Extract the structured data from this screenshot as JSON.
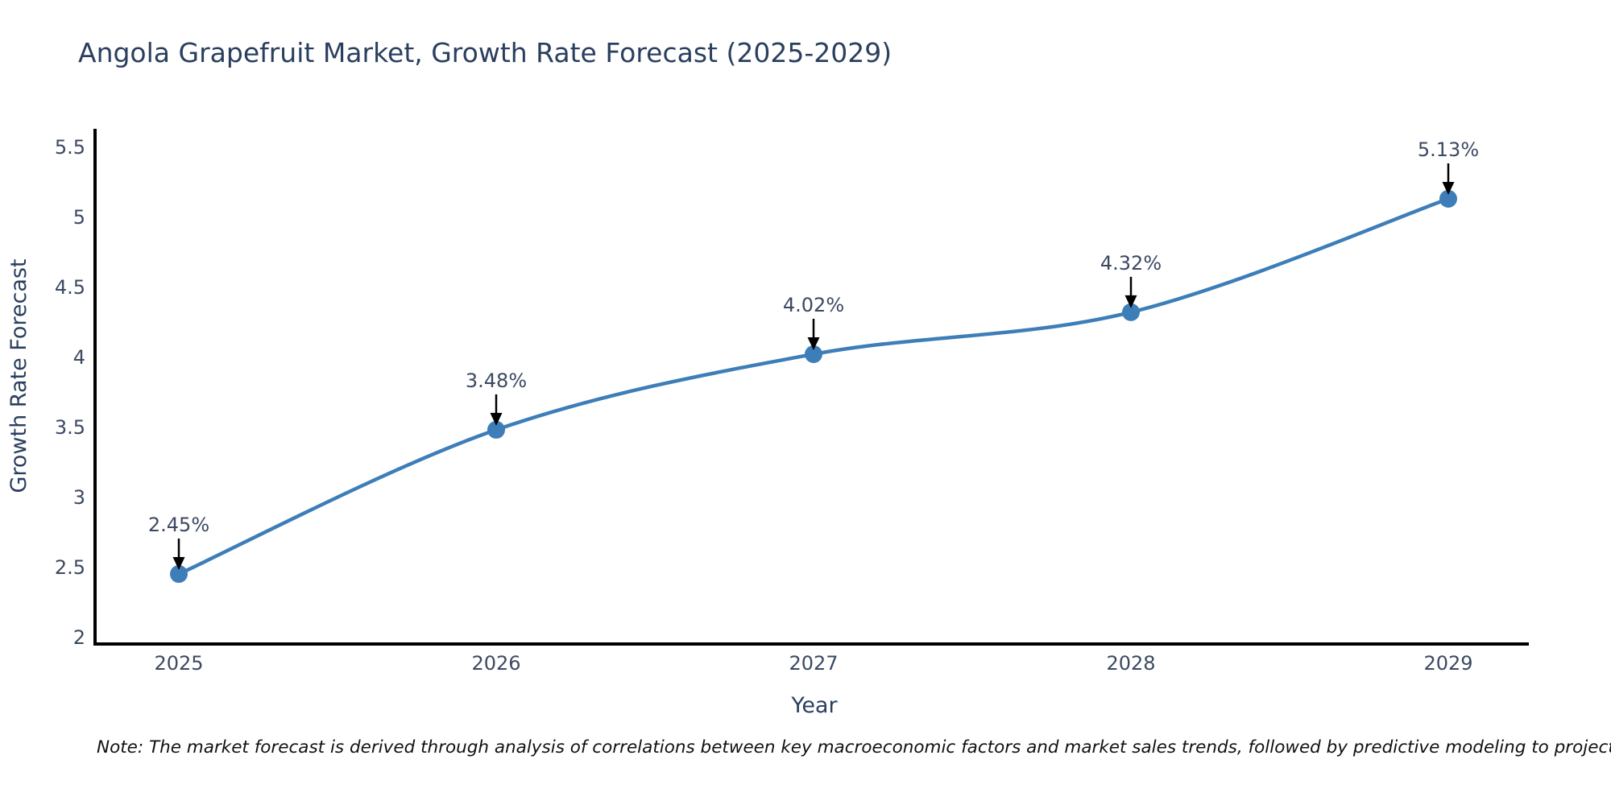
{
  "page": {
    "background": "#ffffff"
  },
  "chart_data": {
    "type": "line",
    "title": "Angola Grapefruit Market, Growth Rate Forecast (2025-2029)",
    "xlabel": "Year",
    "ylabel": "Growth Rate Forecast",
    "categories": [
      "2025",
      "2026",
      "2027",
      "2028",
      "2029"
    ],
    "values": [
      2.45,
      3.48,
      4.02,
      4.32,
      5.13
    ],
    "point_labels": [
      "2.45%",
      "3.48%",
      "4.02%",
      "4.32%",
      "5.13%"
    ],
    "yticks": [
      2,
      2.5,
      3,
      3.5,
      4,
      4.5,
      5,
      5.5
    ],
    "ylim": [
      1.95,
      5.63
    ],
    "grid": false,
    "legend": "none",
    "line_shape": "spline",
    "colors": {
      "line": "#3d7eb8",
      "marker": "#3d7eb8",
      "axis_line": "#000000",
      "title_text": "#2a3f5f",
      "tick_text": "#3c4961",
      "annotation_text": "#3c4961",
      "annotation_arrow": "#000000"
    }
  },
  "note": {
    "text": "Note: The market forecast is derived through analysis of correlations between key macroeconomic factors and market sales trends, followed by predictive modeling to project future sales"
  }
}
